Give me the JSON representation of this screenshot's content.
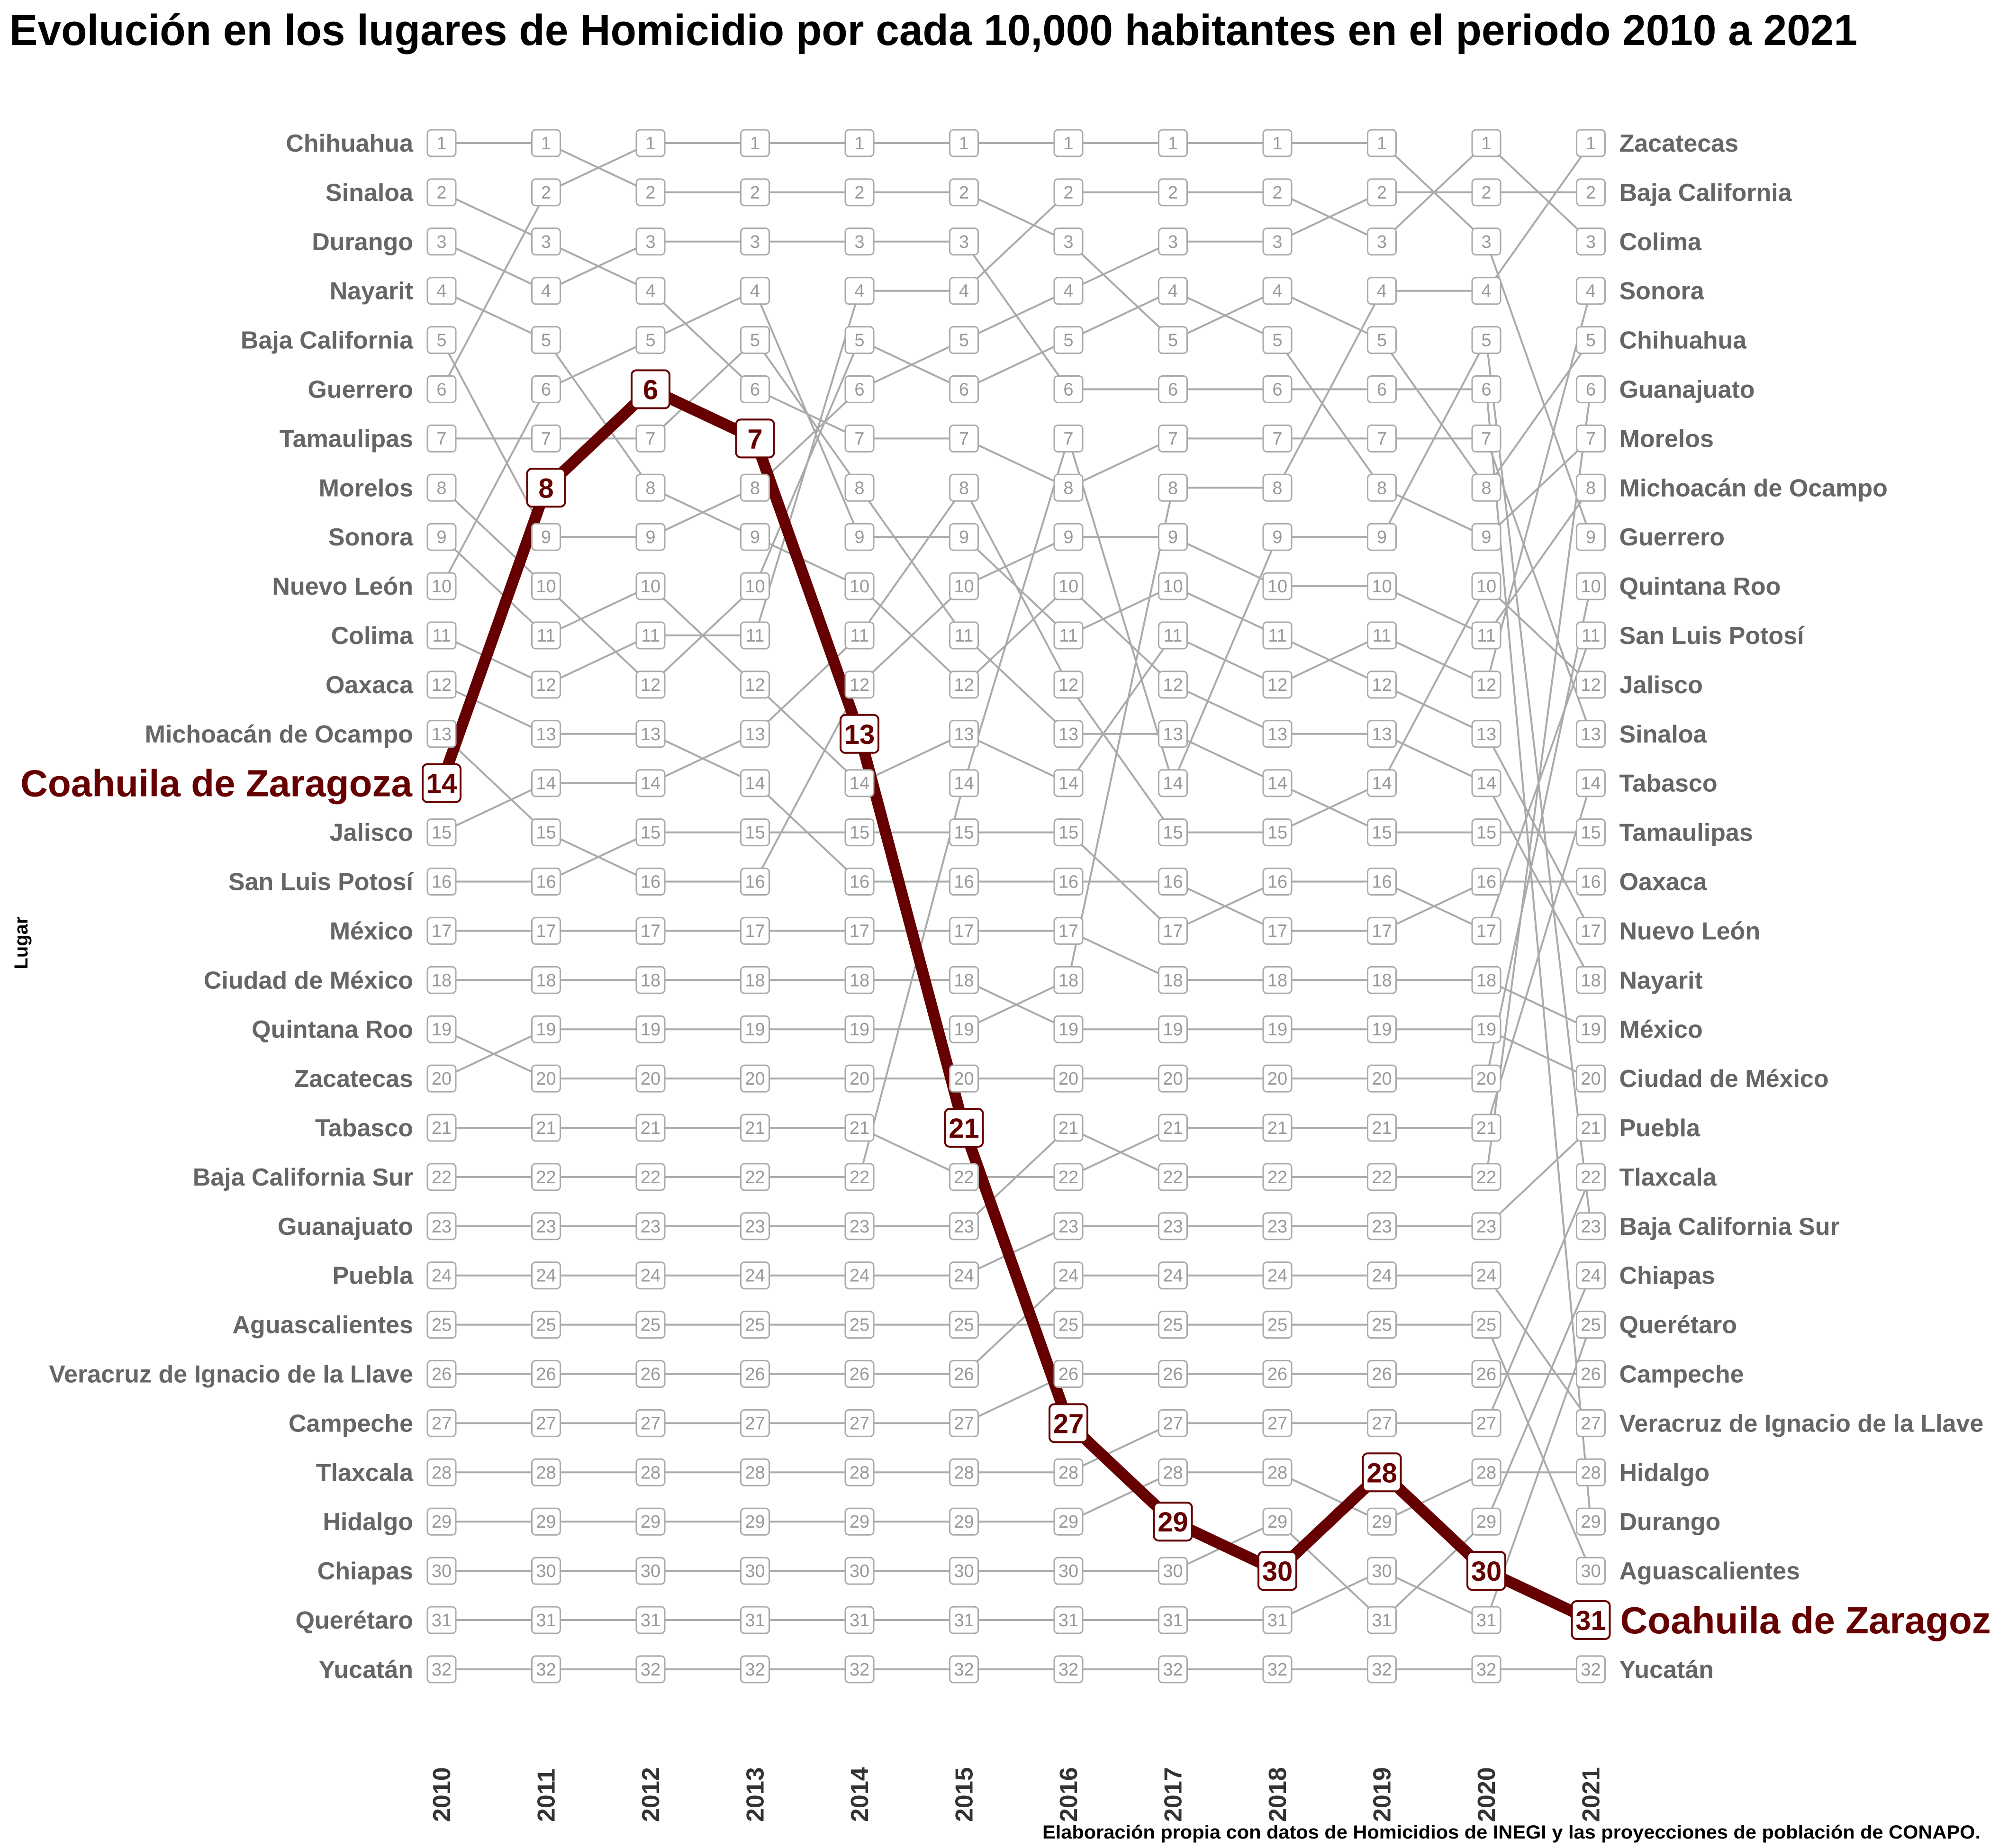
{
  "chart_data": {
    "type": "line",
    "subtype": "bump",
    "title": "Evolución en los lugares de Homicidio por cada 10,000 habitantes en el periodo 2010 a 2021",
    "ylabel": "Lugar",
    "caption": "Elaboración propia con datos de Homicidios de INEGI y las proyecciones de población de CONAPO.",
    "years": [
      "2010",
      "2011",
      "2012",
      "2013",
      "2014",
      "2015",
      "2016",
      "2017",
      "2018",
      "2019",
      "2020",
      "2021"
    ],
    "n_ranks": 32,
    "left_labels": [
      "Chihuahua",
      "Sinaloa",
      "Durango",
      "Nayarit",
      "Baja California",
      "Guerrero",
      "Tamaulipas",
      "Morelos",
      "Sonora",
      "Nuevo León",
      "Colima",
      "Oaxaca",
      "Michoacán de Ocampo",
      "Coahuila de Zaragoza",
      "Jalisco",
      "San Luis Potosí",
      "México",
      "Ciudad de México",
      "Quintana Roo",
      "Zacatecas",
      "Tabasco",
      "Baja California Sur",
      "Guanajuato",
      "Puebla",
      "Aguascalientes",
      "Veracruz de Ignacio de la Llave",
      "Campeche",
      "Tlaxcala",
      "Hidalgo",
      "Chiapas",
      "Querétaro",
      "Yucatán"
    ],
    "right_labels": [
      "Zacatecas",
      "Baja California",
      "Colima",
      "Sonora",
      "Chihuahua",
      "Guanajuato",
      "Morelos",
      "Michoacán de Ocampo",
      "Guerrero",
      "Quintana Roo",
      "San Luis Potosí",
      "Jalisco",
      "Sinaloa",
      "Tabasco",
      "Tamaulipas",
      "Oaxaca",
      "Nuevo León",
      "Nayarit",
      "México",
      "Ciudad de México",
      "Puebla",
      "Tlaxcala",
      "Baja California Sur",
      "Chiapas",
      "Querétaro",
      "Campeche",
      "Veracruz de Ignacio de la Llave",
      "Hidalgo",
      "Durango",
      "Aguascalientes",
      "Coahuila de Zaragoza",
      "Yucatán"
    ],
    "highlight": {
      "name": "Coahuila de Zaragoza",
      "color": "#660000",
      "ranks": [
        14,
        8,
        6,
        7,
        13,
        21,
        27,
        29,
        30,
        28,
        30,
        31
      ]
    },
    "series": [
      {
        "name": "Chihuahua",
        "ranks": [
          1,
          1,
          2,
          2,
          2,
          2,
          3,
          5,
          4,
          5,
          8,
          5
        ]
      },
      {
        "name": "Sinaloa",
        "ranks": [
          2,
          3,
          4,
          6,
          7,
          7,
          8,
          7,
          7,
          7,
          7,
          13
        ]
      },
      {
        "name": "Durango",
        "ranks": [
          3,
          4,
          3,
          3,
          3,
          3,
          6,
          6,
          6,
          6,
          6,
          29
        ]
      },
      {
        "name": "Nayarit",
        "ranks": [
          4,
          5,
          8,
          9,
          10,
          12,
          10,
          12,
          13,
          13,
          14,
          18
        ]
      },
      {
        "name": "Baja California",
        "ranks": [
          5,
          9,
          9,
          8,
          6,
          5,
          4,
          3,
          3,
          2,
          2,
          2
        ]
      },
      {
        "name": "Guerrero",
        "ranks": [
          6,
          2,
          1,
          1,
          1,
          1,
          1,
          1,
          1,
          1,
          3,
          9
        ]
      },
      {
        "name": "Tamaulipas",
        "ranks": [
          7,
          7,
          7,
          5,
          8,
          11,
          13,
          13,
          14,
          15,
          15,
          15
        ]
      },
      {
        "name": "Morelos",
        "ranks": [
          8,
          10,
          12,
          10,
          5,
          6,
          5,
          4,
          5,
          8,
          9,
          7
        ]
      },
      {
        "name": "Sonora",
        "ranks": [
          9,
          11,
          10,
          12,
          14,
          13,
          14,
          11,
          12,
          11,
          12,
          4
        ]
      },
      {
        "name": "Nuevo León",
        "ranks": [
          10,
          6,
          5,
          4,
          9,
          9,
          11,
          10,
          11,
          12,
          13,
          17
        ]
      },
      {
        "name": "Colima",
        "ranks": [
          11,
          12,
          11,
          11,
          4,
          4,
          2,
          2,
          2,
          3,
          1,
          3
        ]
      },
      {
        "name": "Oaxaca",
        "ranks": [
          12,
          13,
          13,
          14,
          16,
          16,
          16,
          16,
          17,
          17,
          16,
          16
        ]
      },
      {
        "name": "Michoacán de Ocampo",
        "ranks": [
          13,
          15,
          16,
          16,
          12,
          10,
          9,
          9,
          10,
          10,
          11,
          8
        ]
      },
      {
        "name": "Jalisco",
        "ranks": [
          15,
          14,
          14,
          13,
          11,
          8,
          12,
          15,
          15,
          14,
          10,
          12
        ]
      },
      {
        "name": "San Luis Potosí",
        "ranks": [
          16,
          16,
          15,
          15,
          15,
          15,
          15,
          17,
          16,
          16,
          17,
          11
        ]
      },
      {
        "name": "México",
        "ranks": [
          17,
          17,
          17,
          17,
          17,
          17,
          17,
          18,
          18,
          18,
          18,
          19
        ]
      },
      {
        "name": "Ciudad de México",
        "ranks": [
          18,
          18,
          18,
          18,
          18,
          18,
          19,
          19,
          19,
          19,
          19,
          20
        ]
      },
      {
        "name": "Quintana Roo",
        "ranks": [
          19,
          20,
          20,
          20,
          20,
          20,
          20,
          20,
          20,
          20,
          20,
          10
        ]
      },
      {
        "name": "Zacatecas",
        "ranks": [
          20,
          19,
          19,
          19,
          19,
          19,
          18,
          8,
          8,
          4,
          4,
          1
        ]
      },
      {
        "name": "Tabasco",
        "ranks": [
          21,
          21,
          21,
          21,
          21,
          22,
          22,
          21,
          21,
          21,
          21,
          14
        ]
      },
      {
        "name": "Baja California Sur",
        "ranks": [
          22,
          22,
          22,
          22,
          22,
          14,
          7,
          14,
          9,
          9,
          5,
          23
        ]
      },
      {
        "name": "Guanajuato",
        "ranks": [
          23,
          23,
          23,
          23,
          23,
          23,
          21,
          22,
          22,
          22,
          22,
          6
        ]
      },
      {
        "name": "Puebla",
        "ranks": [
          24,
          24,
          24,
          24,
          24,
          24,
          23,
          23,
          23,
          23,
          23,
          21
        ]
      },
      {
        "name": "Aguascalientes",
        "ranks": [
          25,
          25,
          25,
          25,
          25,
          25,
          25,
          25,
          25,
          25,
          25,
          30
        ]
      },
      {
        "name": "Veracruz de Ignacio de la Llave",
        "ranks": [
          26,
          26,
          26,
          26,
          26,
          26,
          24,
          24,
          24,
          24,
          24,
          27
        ]
      },
      {
        "name": "Campeche",
        "ranks": [
          27,
          27,
          27,
          27,
          27,
          27,
          26,
          26,
          26,
          26,
          26,
          26
        ]
      },
      {
        "name": "Tlaxcala",
        "ranks": [
          28,
          28,
          28,
          28,
          28,
          28,
          28,
          27,
          27,
          27,
          27,
          22
        ]
      },
      {
        "name": "Hidalgo",
        "ranks": [
          29,
          29,
          29,
          29,
          29,
          29,
          29,
          28,
          28,
          29,
          28,
          28
        ]
      },
      {
        "name": "Chiapas",
        "ranks": [
          30,
          30,
          30,
          30,
          30,
          30,
          30,
          30,
          29,
          31,
          29,
          24
        ]
      },
      {
        "name": "Querétaro",
        "ranks": [
          31,
          31,
          31,
          31,
          31,
          31,
          31,
          31,
          31,
          30,
          31,
          25
        ]
      },
      {
        "name": "Yucatán",
        "ranks": [
          32,
          32,
          32,
          32,
          32,
          32,
          32,
          32,
          32,
          32,
          32,
          32
        ]
      }
    ]
  }
}
